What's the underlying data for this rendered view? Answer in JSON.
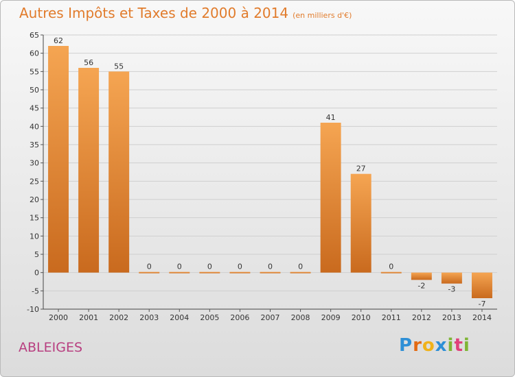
{
  "header": {
    "title": "Autres Impôts et Taxes de 2000 à 2014",
    "unit": "(en milliers d'€)"
  },
  "footer": {
    "commune": "ABLEIGES",
    "logo_letters": [
      "P",
      "r",
      "o",
      "x",
      "i",
      "t",
      "i"
    ]
  },
  "colors": {
    "title": "#e17b2b",
    "commune": "#b83f80",
    "bar_light": "#f5a552",
    "bar_dark": "#c96a1e",
    "logo": [
      "#2e8fd6",
      "#e36a12",
      "#f0b21a",
      "#2e8fd6",
      "#7fb535",
      "#e0407a",
      "#7fb535"
    ]
  },
  "chart_data": {
    "type": "bar",
    "categories": [
      "2000",
      "2001",
      "2002",
      "2003",
      "2004",
      "2005",
      "2006",
      "2007",
      "2008",
      "2009",
      "2010",
      "2011",
      "2012",
      "2013",
      "2014"
    ],
    "values": [
      62,
      56,
      55,
      0,
      0,
      0,
      0,
      0,
      0,
      41,
      27,
      0,
      -2,
      -3,
      -7
    ],
    "labels": [
      "62",
      "56",
      "55",
      "0",
      "0",
      "0",
      "0",
      "0",
      "0",
      "41",
      "27",
      "0",
      "-2",
      "-3",
      "-7"
    ],
    "title": "Autres Impôts et Taxes de 2000 à 2014",
    "ylim": [
      -10,
      65
    ],
    "yticks": [
      -10,
      -5,
      0,
      5,
      10,
      15,
      20,
      25,
      30,
      35,
      40,
      45,
      50,
      55,
      60,
      65
    ],
    "grid": true
  }
}
